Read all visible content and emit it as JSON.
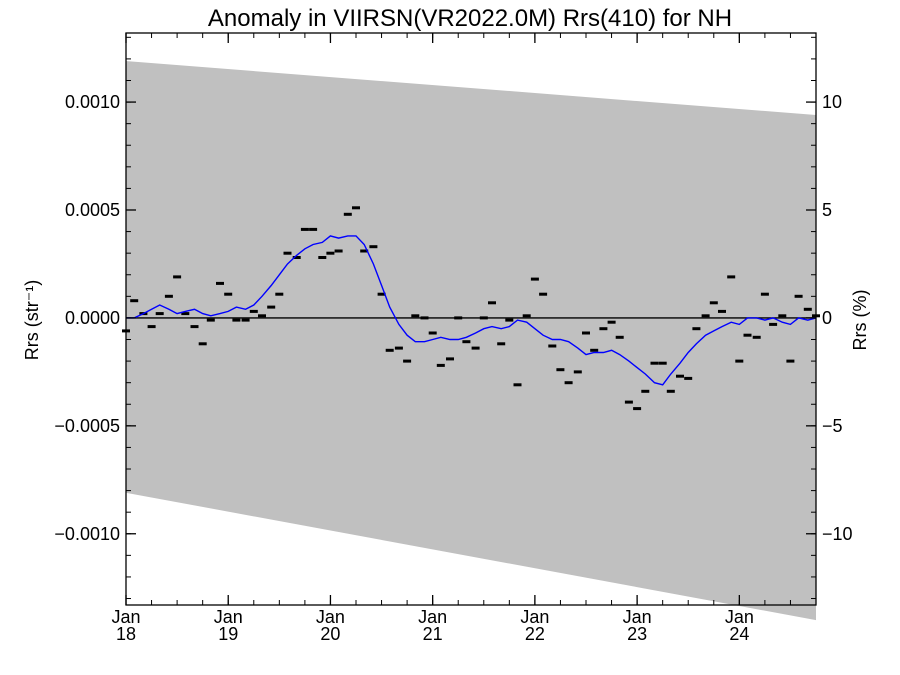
{
  "chart_data": {
    "type": "line",
    "title": "Anomaly in VIIRSN(VR2022.0M) Rrs(410) for NH",
    "ylabel_left": "Rrs (str⁻¹)",
    "ylabel_right": "Rrs (%)",
    "xlim": [
      2018.0,
      2024.75
    ],
    "ylim": [
      -0.00133,
      0.00132
    ],
    "y2lim": [
      -13.3,
      13.2
    ],
    "x_ticks": [
      {
        "value": 2018,
        "month": "Jan",
        "year": "18"
      },
      {
        "value": 2019,
        "month": "Jan",
        "year": "19"
      },
      {
        "value": 2020,
        "month": "Jan",
        "year": "20"
      },
      {
        "value": 2021,
        "month": "Jan",
        "year": "21"
      },
      {
        "value": 2022,
        "month": "Jan",
        "year": "22"
      },
      {
        "value": 2023,
        "month": "Jan",
        "year": "23"
      },
      {
        "value": 2024,
        "month": "Jan",
        "year": "24"
      }
    ],
    "y_ticks_left": [
      {
        "value": 0.001,
        "label": "0.0010"
      },
      {
        "value": 0.0005,
        "label": "0.0005"
      },
      {
        "value": 0.0,
        "label": "0.0000"
      },
      {
        "value": -0.0005,
        "label": "−0.0005"
      },
      {
        "value": -0.001,
        "label": "−0.0010"
      }
    ],
    "y_ticks_right": [
      {
        "value": 10,
        "label": "10"
      },
      {
        "value": 5,
        "label": "5"
      },
      {
        "value": 0,
        "label": "0"
      },
      {
        "value": -5,
        "label": "−5"
      },
      {
        "value": -10,
        "label": "−10"
      }
    ],
    "uncertainty_band": {
      "color": "#c0c0c0",
      "x": [
        2018.0,
        2024.75
      ],
      "upper": [
        0.00119,
        0.00094
      ],
      "lower": [
        -0.00081,
        -0.0014
      ]
    },
    "zero_line": {
      "y": 0,
      "color": "#000000"
    },
    "series": [
      {
        "style": "marker",
        "color": "#000000",
        "x": [
          2018.0,
          2018.08,
          2018.17,
          2018.25,
          2018.33,
          2018.42,
          2018.5,
          2018.58,
          2018.67,
          2018.75,
          2018.83,
          2018.92,
          2019.0,
          2019.08,
          2019.17,
          2019.25,
          2019.33,
          2019.42,
          2019.5,
          2019.58,
          2019.67,
          2019.75,
          2019.83,
          2019.92,
          2020.0,
          2020.08,
          2020.17,
          2020.25,
          2020.33,
          2020.42,
          2020.5,
          2020.58,
          2020.67,
          2020.75,
          2020.83,
          2020.92,
          2021.0,
          2021.08,
          2021.17,
          2021.25,
          2021.33,
          2021.42,
          2021.5,
          2021.58,
          2021.67,
          2021.75,
          2021.83,
          2021.92,
          2022.0,
          2022.08,
          2022.17,
          2022.25,
          2022.33,
          2022.42,
          2022.5,
          2022.58,
          2022.67,
          2022.75,
          2022.83,
          2022.92,
          2023.0,
          2023.08,
          2023.17,
          2023.25,
          2023.33,
          2023.42,
          2023.5,
          2023.58,
          2023.67,
          2023.75,
          2023.83,
          2023.92,
          2024.0,
          2024.08,
          2024.17,
          2024.25,
          2024.33,
          2024.42,
          2024.5,
          2024.58,
          2024.67,
          2024.75
        ],
        "values": [
          -6e-05,
          8e-05,
          2e-05,
          -4e-05,
          2e-05,
          0.0001,
          0.00019,
          2e-05,
          -4e-05,
          -0.00012,
          -1e-05,
          0.00016,
          0.00011,
          -1e-05,
          -1e-05,
          3e-05,
          1e-05,
          5e-05,
          0.00011,
          0.0003,
          0.00028,
          0.00041,
          0.00041,
          0.00028,
          0.0003,
          0.00031,
          0.00048,
          0.00051,
          0.00031,
          0.00033,
          0.00011,
          -0.00015,
          -0.00014,
          -0.0002,
          1e-05,
          0.0,
          -7e-05,
          -0.00022,
          -0.00019,
          0.0,
          -0.00011,
          -0.00014,
          0.0,
          7e-05,
          -0.00012,
          -1e-05,
          -0.00031,
          1e-05,
          0.00018,
          0.00011,
          -0.00013,
          -0.00024,
          -0.0003,
          -0.00025,
          -7e-05,
          -0.00015,
          -5e-05,
          -2e-05,
          -9e-05,
          -0.00039,
          -0.00042,
          -0.00034,
          -0.00021,
          -0.00021,
          -0.00034,
          -0.00027,
          -0.00028,
          -5e-05,
          1e-05,
          7e-05,
          3e-05,
          0.00019,
          -0.0002,
          -8e-05,
          -9e-05,
          0.00011,
          -3e-05,
          1e-05,
          -0.0002,
          0.0001,
          4e-05,
          1e-05
        ]
      },
      {
        "style": "line",
        "color": "#0000ff",
        "x": [
          2018.0,
          2018.08,
          2018.17,
          2018.25,
          2018.33,
          2018.42,
          2018.5,
          2018.58,
          2018.67,
          2018.75,
          2018.83,
          2018.92,
          2019.0,
          2019.08,
          2019.17,
          2019.25,
          2019.33,
          2019.42,
          2019.5,
          2019.58,
          2019.67,
          2019.75,
          2019.83,
          2019.92,
          2020.0,
          2020.08,
          2020.17,
          2020.25,
          2020.33,
          2020.42,
          2020.5,
          2020.58,
          2020.67,
          2020.75,
          2020.83,
          2020.92,
          2021.0,
          2021.08,
          2021.17,
          2021.25,
          2021.33,
          2021.42,
          2021.5,
          2021.58,
          2021.67,
          2021.75,
          2021.83,
          2021.92,
          2022.0,
          2022.08,
          2022.17,
          2022.25,
          2022.33,
          2022.42,
          2022.5,
          2022.58,
          2022.67,
          2022.75,
          2022.83,
          2022.92,
          2023.0,
          2023.08,
          2023.17,
          2023.25,
          2023.33,
          2023.42,
          2023.5,
          2023.58,
          2023.67,
          2023.75,
          2023.83,
          2023.92,
          2024.0,
          2024.08,
          2024.17,
          2024.25,
          2024.33,
          2024.42,
          2024.5,
          2024.58,
          2024.67,
          2024.75
        ],
        "values": [
          0.0,
          0.0,
          2e-05,
          4e-05,
          6e-05,
          4e-05,
          2e-05,
          3e-05,
          4e-05,
          2e-05,
          1e-05,
          2e-05,
          3e-05,
          5e-05,
          4e-05,
          6e-05,
          0.0001,
          0.00015,
          0.0002,
          0.00025,
          0.00029,
          0.00032,
          0.00034,
          0.00035,
          0.00038,
          0.00037,
          0.00038,
          0.00038,
          0.00034,
          0.00025,
          0.00015,
          5e-05,
          -3e-05,
          -8e-05,
          -0.00011,
          -0.00011,
          -0.0001,
          -9e-05,
          -0.0001,
          -0.0001,
          -9e-05,
          -7e-05,
          -5e-05,
          -4e-05,
          -5e-05,
          -4e-05,
          -1e-05,
          -2e-05,
          -5e-05,
          -8e-05,
          -0.0001,
          -0.0001,
          -0.00011,
          -0.00014,
          -0.00017,
          -0.00016,
          -0.00016,
          -0.00015,
          -0.00017,
          -0.0002,
          -0.00023,
          -0.00026,
          -0.0003,
          -0.00031,
          -0.00026,
          -0.00021,
          -0.00016,
          -0.00012,
          -8e-05,
          -6e-05,
          -4e-05,
          -2e-05,
          -3e-05,
          0.0,
          0.0,
          -1e-05,
          0.0,
          -2e-05,
          -3e-05,
          0.0,
          -1e-05,
          0.0
        ]
      }
    ]
  }
}
